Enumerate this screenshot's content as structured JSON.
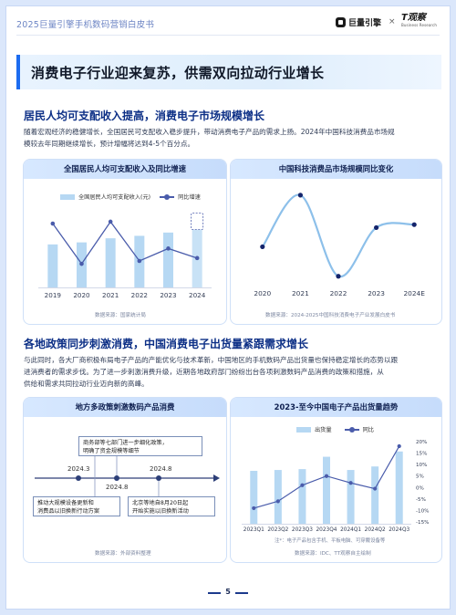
{
  "header": {
    "title": "2025巨量引擎手机数码营销白皮书",
    "logo1": "巨量引擎",
    "separator": "×",
    "logo2": "T观察",
    "logo2_sub": "Business Research"
  },
  "main_title": "消费电子行业迎来复苏，供需双向拉动行业增长",
  "section1": {
    "title": "居民人均可支配收入提高，消费电子市场规模增长",
    "text_line1": "随着宏观经济的稳健增长，全国居民可支配收入稳步提升，带动消费电子产品的需求上扬。2024年中国科技消费品市场规",
    "text_line2": "模较去年同期继续增长，预计增幅将达到4-5个百分点。"
  },
  "section2": {
    "title": "各地政策同步刺激消费，中国消费电子出货量紧跟需求增长",
    "text_line1": "与此同时，各大厂商积极布局电子产品的产能优化与技术革新，中国地区的手机数码产品出货量也保持稳定增长的态势以跟",
    "text_line2": "进消费者的需求步伐。为了进一步刺激消费升级，近期各地政府部门纷纷出台各项刺激数码产品消费的政策和措施，从",
    "text_line3": "供给和需求共同拉动行业迈向新的高峰。"
  },
  "panels": {
    "income": {
      "title": "全国居民人均可支配收入及同比增速",
      "legend_bar": "全国居民人均可支配收入(元)",
      "legend_line": "同比增速",
      "source": "数据来源：国家统计局"
    },
    "market": {
      "title": "中国科技消费品市场规模同比变化",
      "source": "数据来源：2024-2025中国科技消费电子产业发展白皮书"
    },
    "policy": {
      "title": "地方多政策刺激数码产品消费",
      "source": "数据来源：外部资料整理",
      "events": [
        {
          "date": "2024.3",
          "text_line1": "商务部等七部门进一步细化政策，",
          "text_line2": "明确了资金规模等细节"
        },
        {
          "date": "2024.8",
          "text_line1": "推动大规模设备更新和",
          "text_line2": "消费品以旧换新行动方案"
        },
        {
          "date": "2024.8",
          "text_line1": "北京等地自8月20日起",
          "text_line2": "开始实施以旧换新活动"
        }
      ]
    },
    "shipment": {
      "title": "2023-至今中国电子产品出货量趋势",
      "legend_bar": "出货量",
      "legend_line": "同比",
      "note": "注*：电子产品包含手机、平板电脑、可穿戴设备等",
      "source": "数据来源：IDC、TT观察自主绘制"
    }
  },
  "page_number": "5",
  "chart_data": [
    {
      "type": "bar",
      "title": "全国居民人均可支配收入及同比增速",
      "categories": [
        "2019",
        "2020",
        "2021",
        "2022",
        "2023",
        "2024"
      ],
      "series": [
        {
          "name": "全国居民人均可支配收入(元)",
          "values": [
            30733,
            32189,
            35128,
            36883,
            39218,
            41314
          ],
          "projected_last": true
        },
        {
          "name": "同比增速",
          "type": "line",
          "values": [
            8.9,
            4.7,
            9.1,
            5.0,
            6.3,
            5.3
          ]
        }
      ],
      "ylim": [
        0,
        60000
      ]
    },
    {
      "type": "line",
      "title": "中国科技消费品市场规模同比变化",
      "categories": [
        "2020",
        "2021",
        "2022",
        "2023",
        "2024E"
      ],
      "series": [
        {
          "name": "",
          "values": [
            3.5,
            7.0,
            1.5,
            4.8,
            5.0
          ]
        }
      ],
      "ylim": [
        1.3,
        7.3
      ]
    },
    {
      "type": "bar",
      "title": "2023-至今中国电子产品出货量趋势",
      "categories": [
        "2023Q1",
        "2023Q2",
        "2023Q3",
        "2023Q4",
        "2024Q1",
        "2024Q2",
        "2024Q3"
      ],
      "series": [
        {
          "name": "出货量",
          "values": [
            60,
            61,
            62,
            76,
            61,
            65,
            82
          ]
        },
        {
          "name": "同比",
          "type": "line",
          "values": [
            -9,
            -6,
            1,
            5,
            2,
            -0.5,
            18
          ]
        }
      ],
      "y2ticks": [
        "20%",
        "15%",
        "10%",
        "5%",
        "0%",
        "-5%",
        "-10%",
        "-15%"
      ]
    }
  ],
  "colors": {
    "accent": "#1c6cf0",
    "navy": "#0c2f86",
    "bar": "#b6d8f3",
    "line": "#4a5cab",
    "market_line": "#8dc0ea"
  }
}
